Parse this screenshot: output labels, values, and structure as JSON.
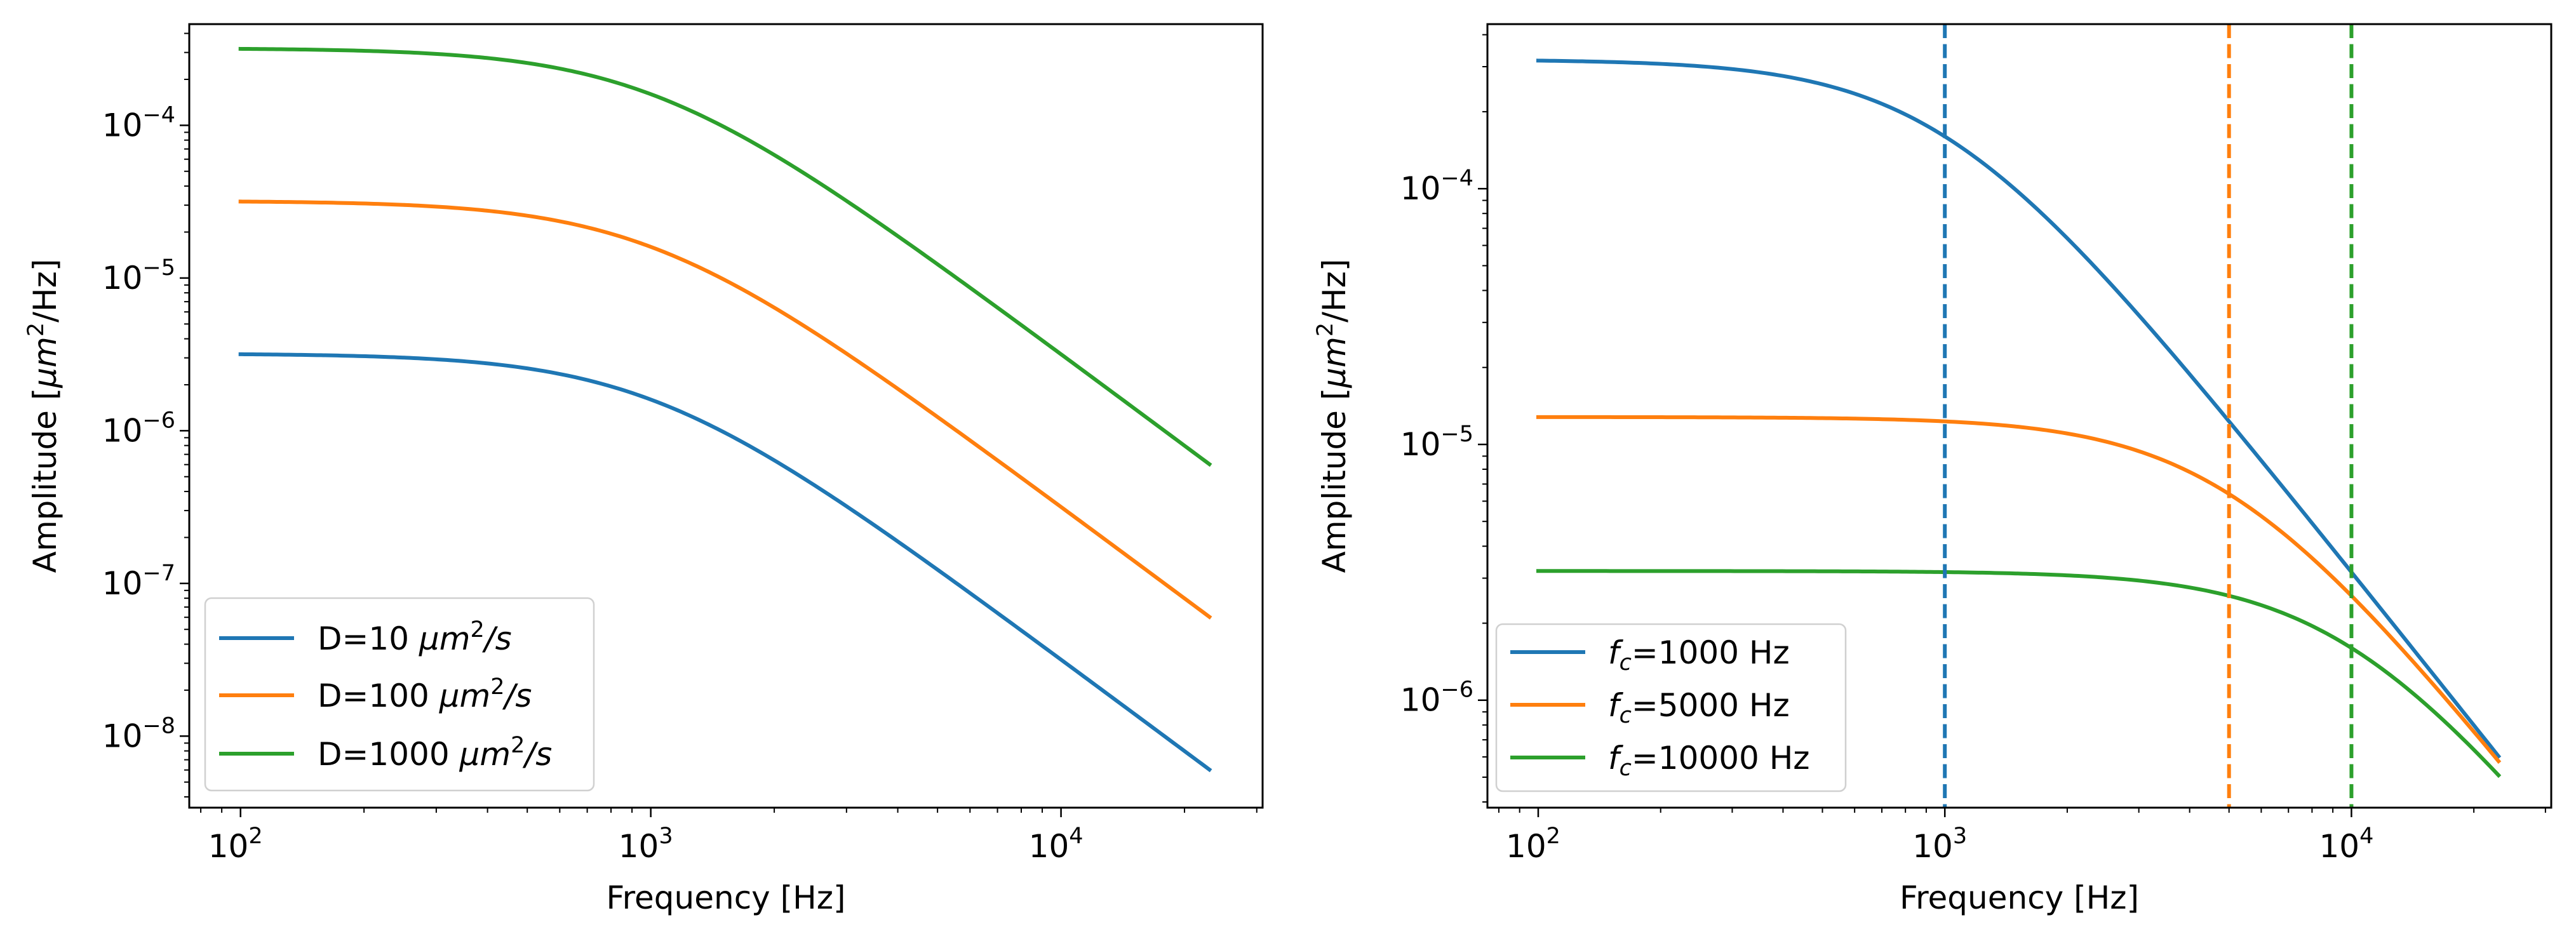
{
  "chart_data": [
    {
      "type": "line",
      "scale": {
        "x": "log",
        "y": "log"
      },
      "xlabel": "Frequency [Hz]",
      "ylabel_parts": {
        "pre": "Amplitude [",
        "mu": "μm",
        "sup": "2",
        "post": "/Hz]"
      },
      "xlim": [
        75,
        31000
      ],
      "ylim": [
        3.4e-09,
        0.00046
      ],
      "x_ticks": [
        {
          "value": 100,
          "base": "10",
          "exp": "2"
        },
        {
          "value": 1000,
          "base": "10",
          "exp": "3"
        },
        {
          "value": 10000,
          "base": "10",
          "exp": "4"
        }
      ],
      "y_ticks": [
        {
          "value": 1e-08,
          "base": "10",
          "exp": "−8"
        },
        {
          "value": 1e-07,
          "base": "10",
          "exp": "−7"
        },
        {
          "value": 1e-06,
          "base": "10",
          "exp": "−6"
        },
        {
          "value": 1e-05,
          "base": "10",
          "exp": "−5"
        },
        {
          "value": 0.0001,
          "base": "10",
          "exp": "−4"
        }
      ],
      "series": [
        {
          "legend": {
            "pre": "D=10 ",
            "mu": "μm",
            "sup": "2",
            "post": "/s"
          },
          "color": "#1f77b4",
          "amplitude": 3.2e-06,
          "fc": 1000
        },
        {
          "legend": {
            "pre": "D=100 ",
            "mu": "μm",
            "sup": "2",
            "post": "/s"
          },
          "color": "#ff7f0e",
          "amplitude": 3.2e-05,
          "fc": 1000
        },
        {
          "legend": {
            "pre": "D=1000 ",
            "mu": "μm",
            "sup": "2",
            "post": "/s"
          },
          "color": "#2ca02c",
          "amplitude": 0.00032,
          "fc": 1000
        }
      ],
      "x_range": [
        100,
        23000
      ],
      "legend_position": "lower-left"
    },
    {
      "type": "line",
      "scale": {
        "x": "log",
        "y": "log"
      },
      "xlabel": "Frequency [Hz]",
      "ylabel_parts": {
        "pre": "Amplitude [",
        "mu": "μm",
        "sup": "2",
        "post": "/Hz]"
      },
      "xlim": [
        75,
        31000
      ],
      "ylim": [
        3.8e-07,
        0.00044
      ],
      "x_ticks": [
        {
          "value": 100,
          "base": "10",
          "exp": "2"
        },
        {
          "value": 1000,
          "base": "10",
          "exp": "3"
        },
        {
          "value": 10000,
          "base": "10",
          "exp": "4"
        }
      ],
      "y_ticks": [
        {
          "value": 1e-06,
          "base": "10",
          "exp": "−6"
        },
        {
          "value": 1e-05,
          "base": "10",
          "exp": "−5"
        },
        {
          "value": 0.0001,
          "base": "10",
          "exp": "−4"
        }
      ],
      "series": [
        {
          "legend": {
            "f": "f",
            "sub": "c",
            "post": "=1000 Hz"
          },
          "color": "#1f77b4",
          "amplitude": 0.00032,
          "fc": 1000
        },
        {
          "legend": {
            "f": "f",
            "sub": "c",
            "post": "=5000 Hz"
          },
          "color": "#ff7f0e",
          "amplitude": 1.28e-05,
          "fc": 5000
        },
        {
          "legend": {
            "f": "f",
            "sub": "c",
            "post": "=10000 Hz"
          },
          "color": "#2ca02c",
          "amplitude": 3.2e-06,
          "fc": 10000
        }
      ],
      "x_range": [
        100,
        23000
      ],
      "vlines": [
        {
          "x": 1000,
          "color": "#1f77b4",
          "style": "dashed"
        },
        {
          "x": 5000,
          "color": "#ff7f0e",
          "style": "dashed"
        },
        {
          "x": 10000,
          "color": "#2ca02c",
          "style": "dashed"
        }
      ],
      "legend_position": "lower-left"
    }
  ]
}
